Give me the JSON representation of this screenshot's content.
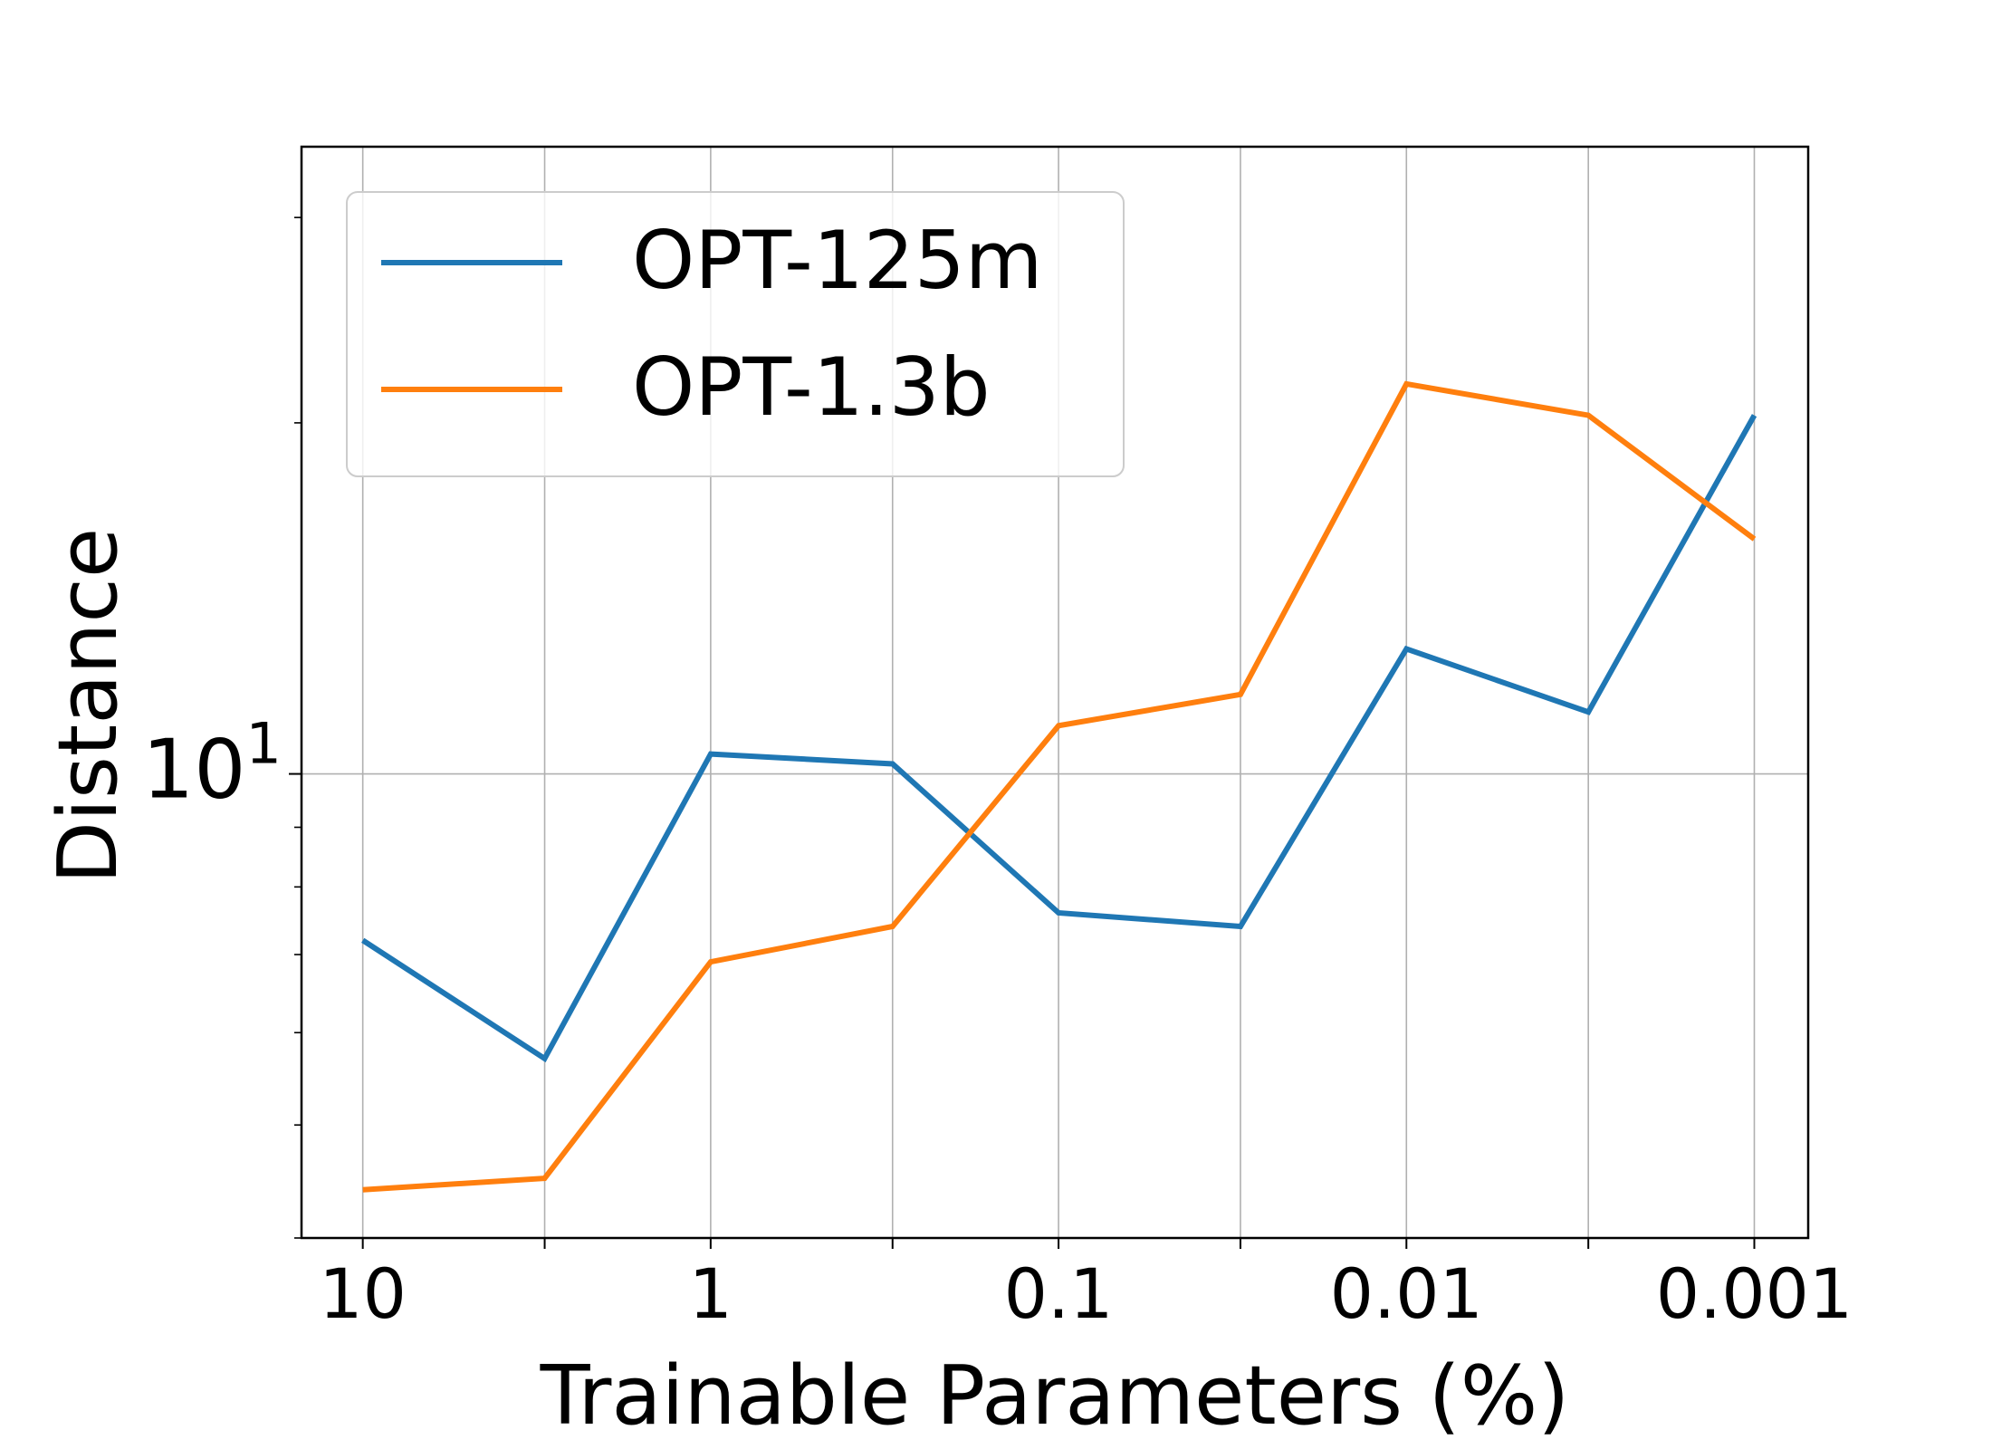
{
  "chart_data": {
    "type": "line",
    "title": "",
    "xlabel": "Trainable Parameters (%)",
    "ylabel": "Distance",
    "x_scale": "log",
    "x_reversed": true,
    "y_scale": "log",
    "grid": true,
    "legend_position": "top-left",
    "xlim": [
      15,
      0.0007
    ],
    "ylim": [
      4.0,
      34.5
    ],
    "x_ticks": [
      {
        "value": 10,
        "label": "10"
      },
      {
        "value": 1,
        "label": "1"
      },
      {
        "value": 0.1,
        "label": "0.1"
      },
      {
        "value": 0.01,
        "label": "0.01"
      },
      {
        "value": 0.001,
        "label": "0.001"
      }
    ],
    "y_ticks": [
      {
        "value": 10,
        "base": "10",
        "exponent": "1"
      }
    ],
    "x": [
      10,
      3,
      1,
      0.3,
      0.1,
      0.03,
      0.01,
      0.003,
      0.001
    ],
    "series": [
      {
        "name": "OPT-125m",
        "color": "#1f77b4",
        "values": [
          7.2,
          5.7,
          10.4,
          10.2,
          7.6,
          7.4,
          12.8,
          11.3,
          20.3
        ]
      },
      {
        "name": "OPT-1.3b",
        "color": "#ff7f0e",
        "values": [
          4.4,
          4.5,
          6.9,
          7.4,
          11.0,
          11.7,
          21.6,
          20.3,
          15.9
        ]
      }
    ]
  }
}
